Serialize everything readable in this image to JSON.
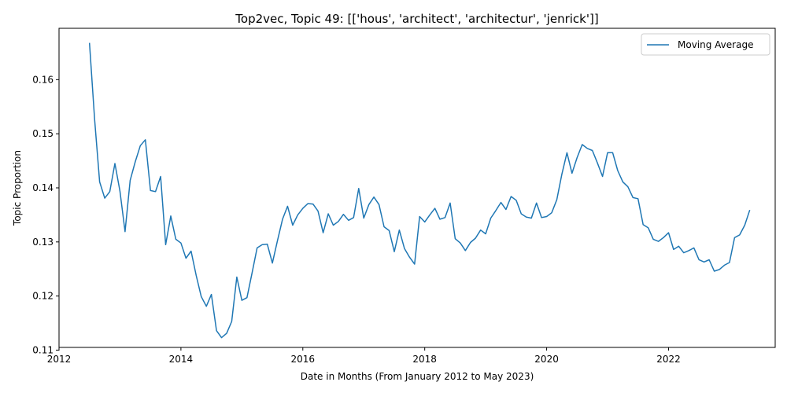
{
  "chart_data": {
    "type": "line",
    "title": "Top2vec, Topic 49: [['hous', 'architect', 'architectur', 'jenrick']]",
    "xlabel": "Date in Months (From January 2012 to May 2023)",
    "ylabel": "Topic Proportion",
    "xlim": [
      "2012-01",
      "2023-10"
    ],
    "ylim": [
      0.1105,
      0.1695
    ],
    "x_ticks": [
      {
        "value": "2012-01",
        "label": "2012"
      },
      {
        "value": "2014-01",
        "label": "2014"
      },
      {
        "value": "2016-01",
        "label": "2016"
      },
      {
        "value": "2018-01",
        "label": "2018"
      },
      {
        "value": "2020-01",
        "label": "2020"
      },
      {
        "value": "2022-01",
        "label": "2022"
      }
    ],
    "y_ticks": [
      {
        "value": 0.11,
        "label": "0.11"
      },
      {
        "value": 0.12,
        "label": "0.12"
      },
      {
        "value": 0.13,
        "label": "0.13"
      },
      {
        "value": 0.14,
        "label": "0.14"
      },
      {
        "value": 0.15,
        "label": "0.15"
      },
      {
        "value": 0.16,
        "label": "0.16"
      }
    ],
    "grid": false,
    "legend": "top-right",
    "series": [
      {
        "name": "Moving Average",
        "color": "#1f77b4",
        "x": [
          "2012-07",
          "2012-08",
          "2012-09",
          "2012-10",
          "2012-11",
          "2012-12",
          "2013-01",
          "2013-02",
          "2013-03",
          "2013-04",
          "2013-05",
          "2013-06",
          "2013-07",
          "2013-08",
          "2013-09",
          "2013-10",
          "2013-11",
          "2013-12",
          "2014-01",
          "2014-02",
          "2014-03",
          "2014-04",
          "2014-05",
          "2014-06",
          "2014-07",
          "2014-08",
          "2014-09",
          "2014-10",
          "2014-11",
          "2014-12",
          "2015-01",
          "2015-02",
          "2015-03",
          "2015-04",
          "2015-05",
          "2015-06",
          "2015-07",
          "2015-08",
          "2015-09",
          "2015-10",
          "2015-11",
          "2015-12",
          "2016-01",
          "2016-02",
          "2016-03",
          "2016-04",
          "2016-05",
          "2016-06",
          "2016-07",
          "2016-08",
          "2016-09",
          "2016-10",
          "2016-11",
          "2016-12",
          "2017-01",
          "2017-02",
          "2017-03",
          "2017-04",
          "2017-05",
          "2017-06",
          "2017-07",
          "2017-08",
          "2017-09",
          "2017-10",
          "2017-11",
          "2017-12",
          "2018-01",
          "2018-02",
          "2018-03",
          "2018-04",
          "2018-05",
          "2018-06",
          "2018-07",
          "2018-08",
          "2018-09",
          "2018-10",
          "2018-11",
          "2018-12",
          "2019-01",
          "2019-02",
          "2019-03",
          "2019-04",
          "2019-05",
          "2019-06",
          "2019-07",
          "2019-08",
          "2019-09",
          "2019-10",
          "2019-11",
          "2019-12",
          "2020-01",
          "2020-02",
          "2020-03",
          "2020-04",
          "2020-05",
          "2020-06",
          "2020-07",
          "2020-08",
          "2020-09",
          "2020-10",
          "2020-11",
          "2020-12",
          "2021-01",
          "2021-02",
          "2021-03",
          "2021-04",
          "2021-05",
          "2021-06",
          "2021-07",
          "2021-08",
          "2021-09",
          "2021-10",
          "2021-11",
          "2021-12",
          "2022-01",
          "2022-02",
          "2022-03",
          "2022-04",
          "2022-05",
          "2022-06",
          "2022-07",
          "2022-08",
          "2022-09",
          "2022-10",
          "2022-11",
          "2022-12",
          "2023-01",
          "2023-02",
          "2023-03",
          "2023-04",
          "2023-05"
        ],
        "values": [
          0.1668,
          0.1527,
          0.1411,
          0.1381,
          0.1393,
          0.1445,
          0.1394,
          0.1319,
          0.1414,
          0.1448,
          0.1478,
          0.1489,
          0.1395,
          0.1393,
          0.1421,
          0.1295,
          0.1348,
          0.1305,
          0.1298,
          0.127,
          0.1283,
          0.1238,
          0.1199,
          0.1181,
          0.1203,
          0.1136,
          0.1123,
          0.1131,
          0.1153,
          0.1235,
          0.1192,
          0.1197,
          0.1242,
          0.1289,
          0.1295,
          0.1296,
          0.1261,
          0.1302,
          0.1342,
          0.1366,
          0.1331,
          0.135,
          0.1362,
          0.1371,
          0.137,
          0.1357,
          0.1317,
          0.1352,
          0.1331,
          0.1338,
          0.1351,
          0.134,
          0.1345,
          0.1399,
          0.1344,
          0.1369,
          0.1383,
          0.1369,
          0.1328,
          0.1321,
          0.1282,
          0.1322,
          0.1288,
          0.1272,
          0.1259,
          0.1347,
          0.1337,
          0.135,
          0.1362,
          0.1342,
          0.1345,
          0.1372,
          0.1306,
          0.1298,
          0.1284,
          0.1299,
          0.1307,
          0.1322,
          0.1315,
          0.1344,
          0.1358,
          0.1373,
          0.136,
          0.1384,
          0.1377,
          0.1352,
          0.1346,
          0.1344,
          0.1372,
          0.1345,
          0.1347,
          0.1354,
          0.1378,
          0.1425,
          0.1465,
          0.1427,
          0.1456,
          0.148,
          0.1473,
          0.1469,
          0.1446,
          0.1421,
          0.1465,
          0.1465,
          0.1432,
          0.1411,
          0.1402,
          0.1382,
          0.138,
          0.1332,
          0.1326,
          0.1305,
          0.1301,
          0.1308,
          0.1317,
          0.1286,
          0.1292,
          0.128,
          0.1284,
          0.1289,
          0.1267,
          0.1263,
          0.1267,
          0.1246,
          0.1249,
          0.1257,
          0.1262,
          0.1308,
          0.1313,
          0.1331,
          0.1359
        ]
      }
    ]
  }
}
